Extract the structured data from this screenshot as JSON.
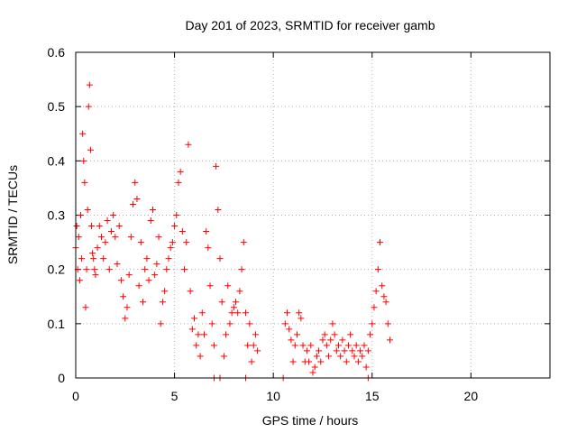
{
  "chart_data": {
    "type": "scatter",
    "title": "Day 201 of 2023, SRMTID for receiver gamb",
    "xlabel": "GPS time / hours",
    "ylabel": "SRMTID / TECUs",
    "xlim": [
      0,
      24
    ],
    "ylim": [
      0,
      0.6
    ],
    "xticks": [
      0,
      5,
      10,
      15,
      20
    ],
    "xtick_labels": [
      "0",
      "5",
      "10",
      "15",
      "20"
    ],
    "yticks": [
      0,
      0.1,
      0.2,
      0.3,
      0.4,
      0.5,
      0.6
    ],
    "ytick_labels": [
      "0",
      "0.1",
      "0.2",
      "0.3",
      "0.4",
      "0.5",
      "0.6"
    ],
    "grid": true,
    "marker": "plus",
    "color": "#ff0000",
    "series": [
      {
        "name": "SRMTID",
        "x": [
          0.0,
          0.05,
          0.1,
          0.15,
          0.2,
          0.25,
          0.3,
          0.35,
          0.4,
          0.45,
          0.5,
          0.55,
          0.6,
          0.65,
          0.7,
          0.75,
          0.8,
          0.85,
          0.9,
          0.95,
          1.0,
          1.1,
          1.2,
          1.3,
          1.4,
          1.5,
          1.6,
          1.7,
          1.8,
          1.9,
          2.0,
          2.1,
          2.2,
          2.3,
          2.4,
          2.5,
          2.6,
          2.7,
          2.8,
          2.9,
          3.0,
          3.1,
          3.2,
          3.3,
          3.4,
          3.5,
          3.6,
          3.7,
          3.8,
          3.9,
          4.0,
          4.1,
          4.2,
          4.3,
          4.4,
          4.5,
          4.6,
          4.7,
          4.8,
          4.9,
          5.0,
          5.1,
          5.2,
          5.3,
          5.4,
          5.5,
          5.6,
          5.7,
          5.8,
          5.9,
          6.0,
          6.1,
          6.2,
          6.3,
          6.4,
          6.5,
          6.6,
          6.7,
          6.8,
          6.9,
          7.0,
          7.1,
          7.2,
          7.3,
          7.4,
          7.5,
          7.6,
          7.7,
          7.8,
          7.9,
          8.0,
          8.1,
          8.2,
          8.3,
          8.4,
          8.5,
          8.6,
          8.7,
          8.8,
          8.9,
          9.0,
          9.1,
          9.2,
          7.0,
          7.3,
          8.6,
          10.5,
          10.6,
          10.7,
          10.8,
          10.9,
          11.0,
          11.1,
          11.2,
          11.3,
          11.4,
          11.5,
          11.6,
          11.7,
          11.8,
          11.9,
          12.0,
          12.1,
          12.2,
          12.3,
          12.4,
          12.5,
          12.6,
          12.7,
          12.8,
          12.9,
          13.0,
          13.1,
          13.2,
          13.3,
          13.4,
          13.5,
          13.6,
          13.7,
          13.8,
          13.9,
          14.0,
          14.1,
          14.2,
          14.3,
          14.4,
          14.5,
          14.6,
          14.7,
          14.8,
          14.9,
          15.0,
          15.1,
          15.2,
          15.3,
          15.4,
          15.5,
          15.6,
          15.7,
          15.8,
          15.9,
          14.8
        ],
        "y": [
          0.24,
          0.28,
          0.2,
          0.26,
          0.18,
          0.3,
          0.22,
          0.45,
          0.4,
          0.36,
          0.13,
          0.2,
          0.31,
          0.5,
          0.54,
          0.42,
          0.28,
          0.23,
          0.22,
          0.2,
          0.19,
          0.24,
          0.28,
          0.26,
          0.22,
          0.25,
          0.29,
          0.2,
          0.27,
          0.3,
          0.26,
          0.21,
          0.28,
          0.18,
          0.15,
          0.11,
          0.13,
          0.19,
          0.26,
          0.32,
          0.36,
          0.33,
          0.17,
          0.25,
          0.14,
          0.2,
          0.22,
          0.18,
          0.29,
          0.31,
          0.19,
          0.21,
          0.26,
          0.1,
          0.14,
          0.16,
          0.2,
          0.22,
          0.24,
          0.25,
          0.28,
          0.3,
          0.36,
          0.38,
          0.27,
          0.2,
          0.25,
          0.43,
          0.16,
          0.09,
          0.11,
          0.06,
          0.08,
          0.04,
          0.12,
          0.08,
          0.27,
          0.24,
          0.17,
          0.1,
          0.06,
          0.39,
          0.31,
          0.22,
          0.14,
          0.04,
          0.08,
          0.17,
          0.1,
          0.12,
          0.13,
          0.14,
          0.12,
          0.16,
          0.2,
          0.25,
          0.12,
          0.06,
          0.1,
          0.03,
          0.06,
          0.08,
          0.05,
          0.0,
          0.0,
          0.0,
          0.0,
          0.1,
          0.12,
          0.09,
          0.07,
          0.03,
          0.06,
          0.08,
          0.12,
          0.11,
          0.06,
          0.03,
          0.05,
          0.03,
          0.06,
          0.01,
          0.02,
          0.04,
          0.05,
          0.03,
          0.07,
          0.08,
          0.06,
          0.04,
          0.07,
          0.1,
          0.08,
          0.05,
          0.06,
          0.04,
          0.07,
          0.05,
          0.03,
          0.06,
          0.08,
          0.05,
          0.04,
          0.06,
          0.03,
          0.05,
          0.04,
          0.06,
          0.02,
          0.05,
          0.08,
          0.1,
          0.13,
          0.16,
          0.2,
          0.25,
          0.17,
          0.15,
          0.14,
          0.1,
          0.07,
          0.0
        ]
      }
    ]
  }
}
